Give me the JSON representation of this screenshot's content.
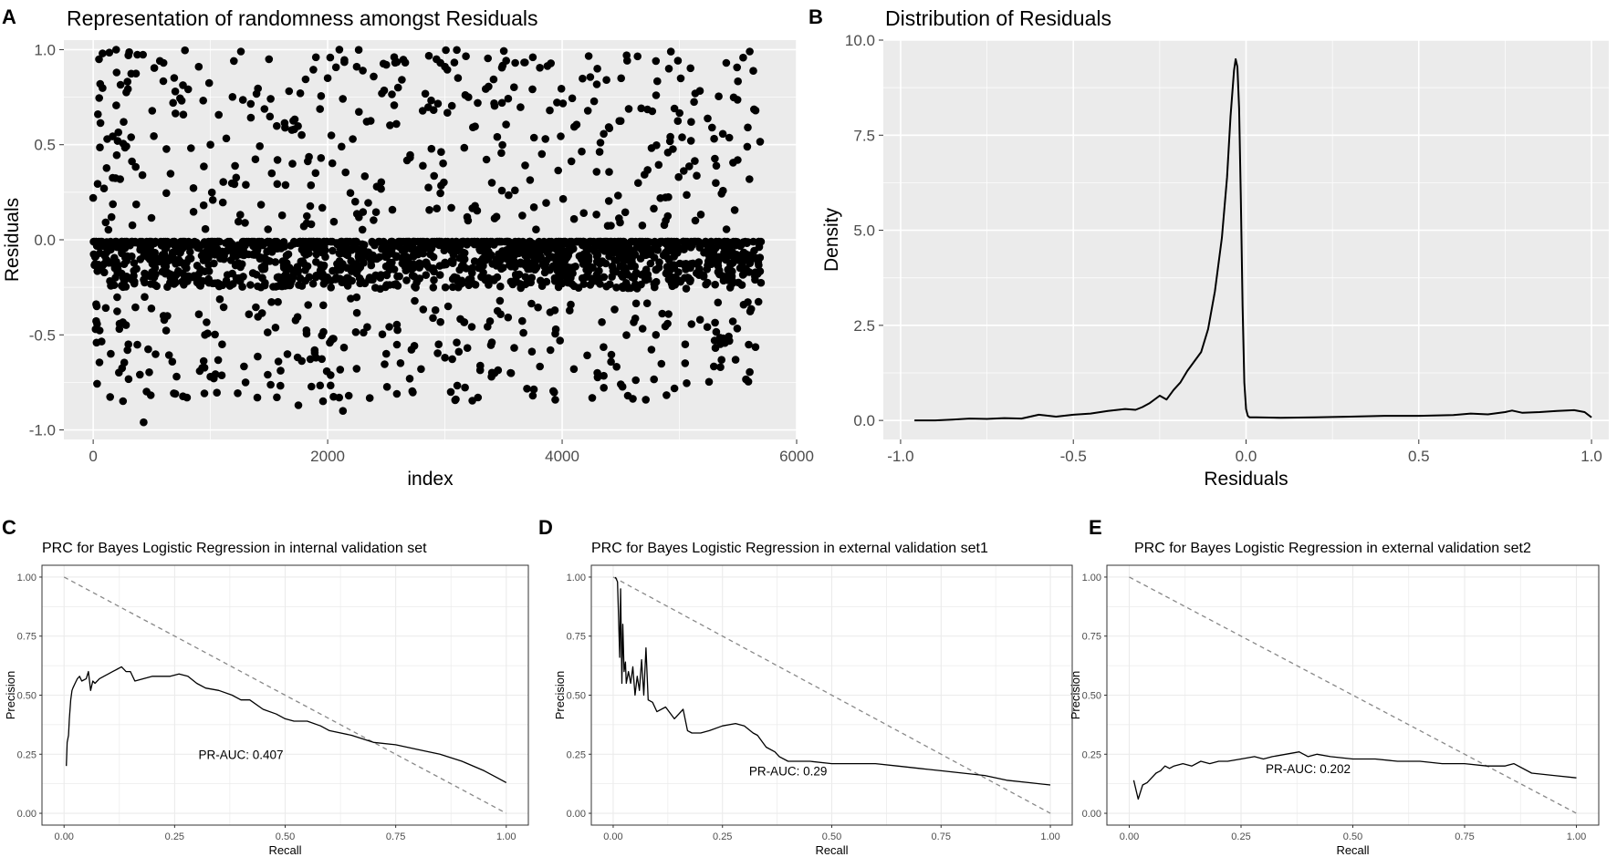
{
  "chart_data": [
    {
      "panel": "A",
      "type": "scatter",
      "title": "Representation of randomness amongst Residuals",
      "xlabel": "index",
      "ylabel": "Residuals",
      "xlim": [
        -250,
        6000
      ],
      "ylim": [
        -1.05,
        1.05
      ],
      "xticks": [
        0,
        2000,
        4000,
        6000
      ],
      "xtick_labels": [
        "0",
        "2000",
        "4000",
        "6000"
      ],
      "yticks": [
        -1.0,
        -0.5,
        0.0,
        0.5,
        1.0
      ],
      "ytick_labels": [
        "-1.0",
        "-0.5",
        "0.0",
        "0.5",
        "1.0"
      ],
      "n_points": 5700,
      "grid": true,
      "points_sample": [
        [
          0,
          0.22
        ],
        [
          40,
          0.66
        ],
        [
          60,
          0.82
        ],
        [
          80,
          0.98
        ],
        [
          120,
          0.53
        ],
        [
          200,
          0.88
        ],
        [
          260,
          0.62
        ],
        [
          300,
          0.97
        ],
        [
          420,
          0.34
        ],
        [
          600,
          0.93
        ],
        [
          700,
          0.78
        ],
        [
          900,
          0.91
        ],
        [
          1000,
          0.5
        ],
        [
          1200,
          0.94
        ],
        [
          1260,
          0.99
        ],
        [
          1500,
          0.95
        ],
        [
          1700,
          0.4
        ],
        [
          1900,
          0.96
        ],
        [
          2000,
          0.85
        ],
        [
          2100,
          1.0
        ],
        [
          2300,
          0.89
        ],
        [
          2500,
          0.92
        ],
        [
          2600,
          0.8
        ],
        [
          3000,
          0.91
        ],
        [
          3200,
          0.75
        ],
        [
          3400,
          0.3
        ],
        [
          3600,
          0.93
        ],
        [
          3750,
          0.96
        ],
        [
          4300,
          0.9
        ],
        [
          4550,
          0.97
        ],
        [
          4800,
          0.94
        ],
        [
          5100,
          0.62
        ],
        [
          5400,
          0.93
        ],
        [
          5600,
          0.99
        ],
        [
          5650,
          0.68
        ],
        [
          30,
          -0.35
        ],
        [
          150,
          -0.6
        ],
        [
          300,
          -0.55
        ],
        [
          430,
          -0.96
        ],
        [
          600,
          -0.4
        ],
        [
          700,
          -0.81
        ],
        [
          800,
          -0.83
        ],
        [
          1000,
          -0.72
        ],
        [
          1100,
          -0.55
        ],
        [
          1300,
          -0.75
        ],
        [
          1400,
          -0.83
        ],
        [
          1580,
          -0.64
        ],
        [
          1750,
          -0.87
        ],
        [
          1900,
          -0.62
        ],
        [
          2050,
          -0.52
        ],
        [
          2130,
          -0.9
        ],
        [
          2180,
          -0.82
        ],
        [
          2500,
          -0.6
        ],
        [
          2700,
          -0.73
        ],
        [
          3000,
          -0.62
        ],
        [
          3050,
          -0.8
        ],
        [
          3400,
          -0.54
        ],
        [
          3560,
          -0.7
        ],
        [
          3750,
          -0.82
        ],
        [
          3900,
          -0.58
        ],
        [
          4100,
          -0.68
        ],
        [
          4300,
          -0.7
        ],
        [
          4500,
          -0.76
        ],
        [
          4560,
          -0.82
        ],
        [
          4800,
          -0.5
        ],
        [
          5050,
          -0.55
        ],
        [
          5300,
          -0.53
        ],
        [
          5350,
          -0.67
        ],
        [
          5650,
          -0.18
        ]
      ],
      "band_range": [
        -0.25,
        0.0
      ]
    },
    {
      "panel": "B",
      "type": "line",
      "title": "Distribution of Residuals",
      "xlabel": "Residuals",
      "ylabel": "Density",
      "xlim": [
        -1.05,
        1.05
      ],
      "ylim": [
        -0.5,
        10.0
      ],
      "xticks": [
        -1.0,
        -0.5,
        0.0,
        0.5,
        1.0
      ],
      "xtick_labels": [
        "-1.0",
        "-0.5",
        "0.0",
        "0.5",
        "1.0"
      ],
      "yticks": [
        0.0,
        2.5,
        5.0,
        7.5,
        10.0
      ],
      "ytick_labels": [
        "0.0",
        "2.5",
        "5.0",
        "7.5",
        "10.0"
      ],
      "grid": true,
      "x": [
        -0.96,
        -0.9,
        -0.85,
        -0.8,
        -0.75,
        -0.7,
        -0.65,
        -0.6,
        -0.55,
        -0.5,
        -0.45,
        -0.4,
        -0.35,
        -0.32,
        -0.3,
        -0.28,
        -0.25,
        -0.23,
        -0.21,
        -0.19,
        -0.17,
        -0.15,
        -0.13,
        -0.11,
        -0.09,
        -0.07,
        -0.055,
        -0.045,
        -0.035,
        -0.03,
        -0.025,
        -0.02,
        -0.015,
        -0.01,
        -0.005,
        0.0,
        0.005,
        0.01,
        0.03,
        0.1,
        0.2,
        0.3,
        0.4,
        0.5,
        0.6,
        0.65,
        0.7,
        0.75,
        0.77,
        0.8,
        0.85,
        0.9,
        0.95,
        0.98,
        1.0
      ],
      "y": [
        0.0,
        0.0,
        0.02,
        0.05,
        0.04,
        0.06,
        0.05,
        0.15,
        0.1,
        0.15,
        0.18,
        0.25,
        0.3,
        0.28,
        0.35,
        0.45,
        0.65,
        0.55,
        0.8,
        1.0,
        1.3,
        1.55,
        1.8,
        2.4,
        3.4,
        4.8,
        6.4,
        8.0,
        9.2,
        9.5,
        9.3,
        8.2,
        5.8,
        3.0,
        1.0,
        0.3,
        0.12,
        0.08,
        0.08,
        0.07,
        0.08,
        0.1,
        0.12,
        0.12,
        0.14,
        0.18,
        0.16,
        0.22,
        0.26,
        0.2,
        0.22,
        0.25,
        0.27,
        0.22,
        0.08
      ]
    },
    {
      "panel": "C",
      "type": "line",
      "title": "PRC for Bayes Logistic Regression in internal validation set",
      "xlabel": "Recall",
      "ylabel": "Precision",
      "xlim": [
        -0.05,
        1.05
      ],
      "ylim": [
        -0.05,
        1.05
      ],
      "xticks": [
        0.0,
        0.25,
        0.5,
        0.75,
        1.0
      ],
      "xtick_labels": [
        "0.00",
        "0.25",
        "0.50",
        "0.75",
        "1.00"
      ],
      "yticks": [
        0.0,
        0.25,
        0.5,
        0.75,
        1.0
      ],
      "ytick_labels": [
        "0.00",
        "0.25",
        "0.50",
        "0.75",
        "1.00"
      ],
      "annotation": "PR-AUC: 0.407",
      "annotation_at": [
        0.4,
        0.25
      ],
      "diagonal": true,
      "x": [
        0.005,
        0.007,
        0.01,
        0.012,
        0.015,
        0.018,
        0.02,
        0.025,
        0.03,
        0.035,
        0.04,
        0.05,
        0.055,
        0.06,
        0.065,
        0.07,
        0.08,
        0.09,
        0.1,
        0.11,
        0.12,
        0.13,
        0.14,
        0.15,
        0.16,
        0.18,
        0.2,
        0.22,
        0.24,
        0.26,
        0.28,
        0.3,
        0.32,
        0.35,
        0.38,
        0.4,
        0.42,
        0.45,
        0.48,
        0.5,
        0.52,
        0.55,
        0.58,
        0.6,
        0.65,
        0.7,
        0.75,
        0.8,
        0.85,
        0.9,
        0.95,
        0.98,
        1.0
      ],
      "y": [
        0.2,
        0.3,
        0.33,
        0.4,
        0.48,
        0.52,
        0.53,
        0.55,
        0.57,
        0.58,
        0.56,
        0.57,
        0.6,
        0.52,
        0.56,
        0.55,
        0.57,
        0.58,
        0.59,
        0.6,
        0.61,
        0.62,
        0.6,
        0.6,
        0.56,
        0.57,
        0.58,
        0.58,
        0.58,
        0.59,
        0.58,
        0.55,
        0.53,
        0.52,
        0.5,
        0.48,
        0.48,
        0.44,
        0.42,
        0.4,
        0.39,
        0.39,
        0.37,
        0.35,
        0.33,
        0.3,
        0.29,
        0.27,
        0.25,
        0.22,
        0.18,
        0.15,
        0.13
      ]
    },
    {
      "panel": "D",
      "type": "line",
      "title": "PRC for Bayes Logistic Regression in external validation set1",
      "xlabel": "Recall",
      "ylabel": "Precision",
      "xlim": [
        -0.05,
        1.05
      ],
      "ylim": [
        -0.05,
        1.05
      ],
      "xticks": [
        0.0,
        0.25,
        0.5,
        0.75,
        1.0
      ],
      "xtick_labels": [
        "0.00",
        "0.25",
        "0.50",
        "0.75",
        "1.00"
      ],
      "yticks": [
        0.0,
        0.25,
        0.5,
        0.75,
        1.0
      ],
      "ytick_labels": [
        "0.00",
        "0.25",
        "0.50",
        "0.75",
        "1.00"
      ],
      "annotation": "PR-AUC: 0.29",
      "annotation_at": [
        0.4,
        0.18
      ],
      "diagonal": true,
      "x": [
        0.005,
        0.01,
        0.012,
        0.015,
        0.017,
        0.02,
        0.022,
        0.025,
        0.028,
        0.03,
        0.035,
        0.04,
        0.045,
        0.05,
        0.055,
        0.06,
        0.065,
        0.07,
        0.075,
        0.08,
        0.09,
        0.1,
        0.12,
        0.14,
        0.16,
        0.17,
        0.18,
        0.2,
        0.22,
        0.25,
        0.28,
        0.3,
        0.32,
        0.33,
        0.35,
        0.37,
        0.38,
        0.4,
        0.45,
        0.5,
        0.55,
        0.6,
        0.65,
        0.7,
        0.75,
        0.8,
        0.85,
        0.9,
        0.95,
        1.0
      ],
      "y": [
        1.0,
        0.98,
        0.85,
        0.66,
        0.95,
        0.55,
        0.8,
        0.6,
        0.64,
        0.55,
        0.6,
        0.55,
        0.62,
        0.5,
        0.58,
        0.52,
        0.65,
        0.5,
        0.7,
        0.48,
        0.47,
        0.43,
        0.45,
        0.4,
        0.44,
        0.35,
        0.34,
        0.34,
        0.35,
        0.37,
        0.38,
        0.37,
        0.34,
        0.33,
        0.28,
        0.26,
        0.24,
        0.22,
        0.22,
        0.21,
        0.21,
        0.21,
        0.2,
        0.19,
        0.18,
        0.17,
        0.16,
        0.14,
        0.13,
        0.12
      ]
    },
    {
      "panel": "E",
      "type": "line",
      "title": "PRC for Bayes Logistic Regression in external validation set2",
      "xlabel": "Recall",
      "ylabel": "Precision",
      "xlim": [
        -0.05,
        1.05
      ],
      "ylim": [
        -0.05,
        1.05
      ],
      "xticks": [
        0.0,
        0.25,
        0.5,
        0.75,
        1.0
      ],
      "xtick_labels": [
        "0.00",
        "0.25",
        "0.50",
        "0.75",
        "1.00"
      ],
      "yticks": [
        0.0,
        0.25,
        0.5,
        0.75,
        1.0
      ],
      "ytick_labels": [
        "0.00",
        "0.25",
        "0.50",
        "0.75",
        "1.00"
      ],
      "annotation": "PR-AUC: 0.202",
      "annotation_at": [
        0.4,
        0.19
      ],
      "diagonal": true,
      "x": [
        0.01,
        0.02,
        0.03,
        0.04,
        0.05,
        0.06,
        0.07,
        0.08,
        0.09,
        0.1,
        0.12,
        0.14,
        0.16,
        0.18,
        0.2,
        0.22,
        0.25,
        0.28,
        0.3,
        0.32,
        0.35,
        0.38,
        0.4,
        0.42,
        0.45,
        0.5,
        0.55,
        0.6,
        0.65,
        0.7,
        0.75,
        0.8,
        0.84,
        0.86,
        0.9,
        0.95,
        1.0
      ],
      "y": [
        0.14,
        0.06,
        0.12,
        0.13,
        0.15,
        0.17,
        0.18,
        0.2,
        0.19,
        0.2,
        0.21,
        0.2,
        0.22,
        0.21,
        0.22,
        0.22,
        0.23,
        0.24,
        0.23,
        0.24,
        0.25,
        0.26,
        0.24,
        0.25,
        0.24,
        0.23,
        0.23,
        0.22,
        0.22,
        0.21,
        0.21,
        0.2,
        0.2,
        0.21,
        0.17,
        0.16,
        0.15
      ]
    }
  ]
}
